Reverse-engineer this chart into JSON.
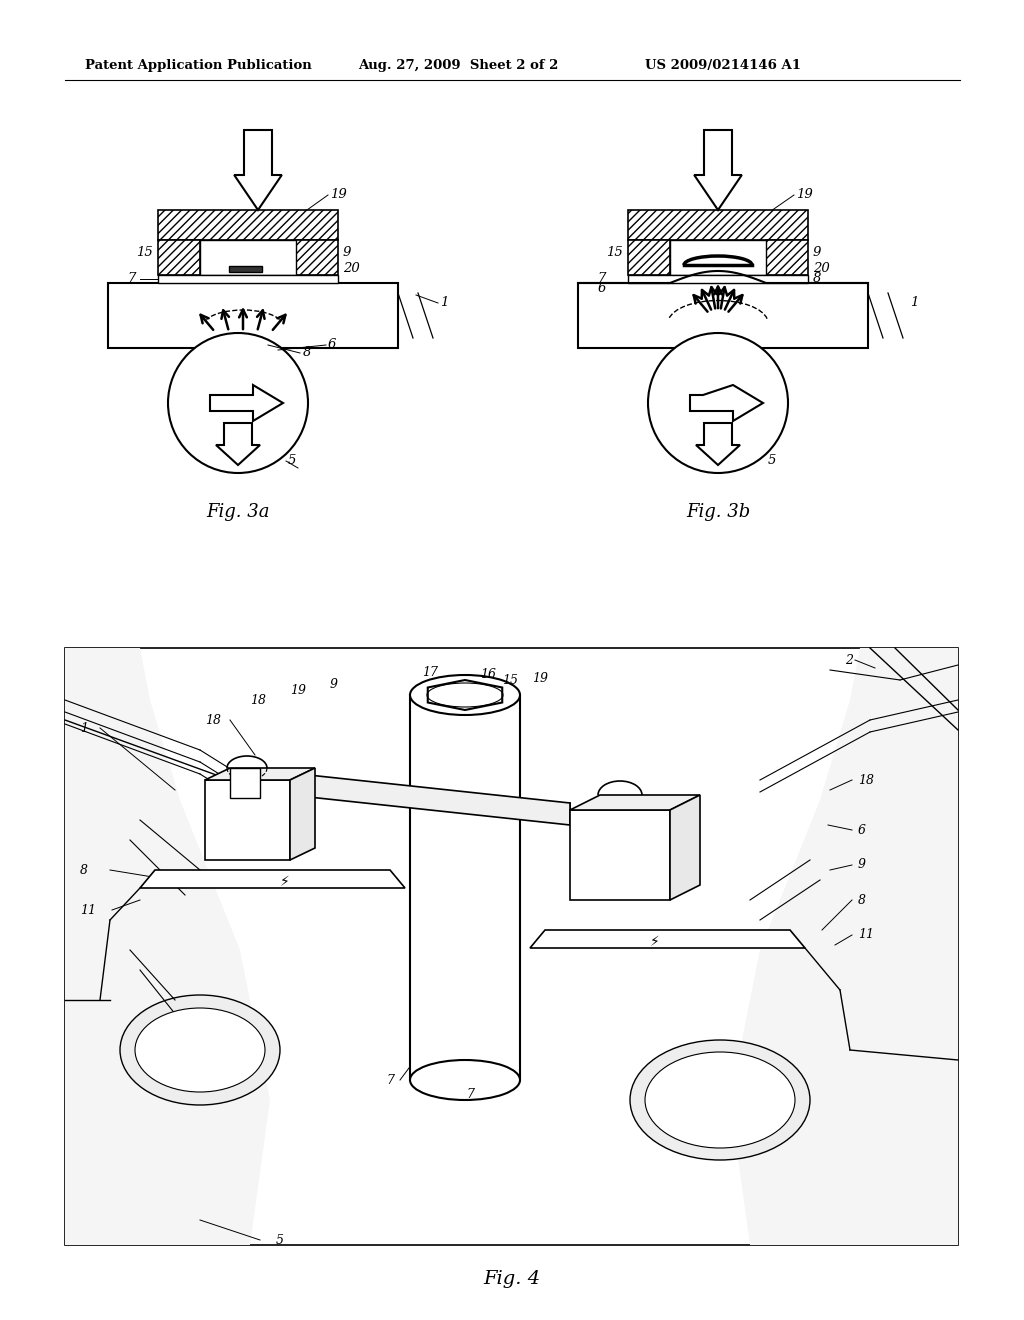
{
  "bg_color": "#ffffff",
  "header_left": "Patent Application Publication",
  "header_mid": "Aug. 27, 2009  Sheet 2 of 2",
  "header_right": "US 2009/0214146 A1",
  "fig3a_label": "Fig. 3a",
  "fig3b_label": "Fig. 3b",
  "fig4_label": "Fig. 4",
  "header_fontsize": 10,
  "label_fontsize": 13
}
